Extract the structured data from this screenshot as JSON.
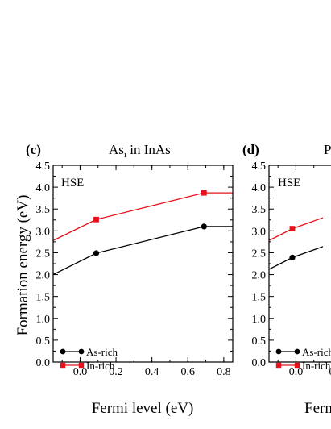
{
  "chart_data": [
    {
      "type": "line",
      "panel_label": "(c)",
      "title": "As_i in InAs",
      "title_main": "As",
      "title_sub": "i",
      "title_rest": " in InAs",
      "annotation": "HSE",
      "xlabel": "Fermi level (eV)",
      "ylabel": "Formation energy (eV)",
      "xlim": [
        -0.15,
        0.85
      ],
      "ylim": [
        0.0,
        4.5
      ],
      "xticks": [
        "0.0",
        "0.2",
        "0.4",
        "0.6",
        "0.8"
      ],
      "yticks": [
        "0.0",
        "0.5",
        "1.0",
        "1.5",
        "2.0",
        "2.5",
        "3.0",
        "3.5",
        "4.0",
        "4.5"
      ],
      "grid": false,
      "legend_position": "bottom-left",
      "series": [
        {
          "name": "As-rich",
          "color": "#000000",
          "marker": "circle",
          "x": [
            -0.15,
            0.09,
            0.69,
            0.85
          ],
          "y": [
            2.0,
            2.49,
            3.1,
            3.1
          ],
          "marker_x": [
            0.09,
            0.69
          ],
          "marker_y": [
            2.49,
            3.1
          ]
        },
        {
          "name": "In-rich",
          "color": "#e8101a",
          "marker": "square",
          "x": [
            -0.15,
            0.09,
            0.69,
            0.85
          ],
          "y": [
            2.78,
            3.26,
            3.87,
            3.87
          ],
          "marker_x": [
            0.09,
            0.69
          ],
          "marker_y": [
            3.26,
            3.87
          ]
        }
      ]
    },
    {
      "type": "line",
      "panel_label": "(d)",
      "title_main": "P",
      "annotation": "HSE",
      "xlabel": "Fermi level (eV)",
      "ylabel": "",
      "xlim": [
        -0.15,
        0.85
      ],
      "ylim": [
        0.0,
        4.5
      ],
      "xticks": [
        "0.0",
        "0"
      ],
      "yticks": [
        "0.0",
        "0.5",
        "1.0",
        "1.5",
        "2.0",
        "2.5",
        "3.0",
        "3.5",
        "4.0",
        "4.5"
      ],
      "grid": false,
      "legend_position": "bottom-left",
      "series": [
        {
          "name": "As-rich",
          "color": "#000000",
          "marker": "circle",
          "x": [
            -0.15,
            -0.02,
            0.15
          ],
          "y": [
            2.12,
            2.39,
            2.64
          ],
          "marker_x": [
            -0.02
          ],
          "marker_y": [
            2.39
          ]
        },
        {
          "name": "In-rich",
          "color": "#e8101a",
          "marker": "square",
          "x": [
            -0.15,
            -0.02,
            0.15
          ],
          "y": [
            2.78,
            3.05,
            3.3
          ],
          "marker_x": [
            -0.02
          ],
          "marker_y": [
            3.05
          ]
        }
      ]
    }
  ]
}
